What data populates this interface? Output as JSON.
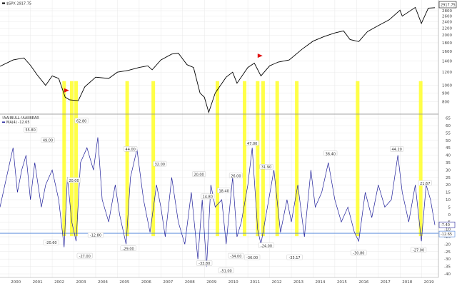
{
  "chart_data": {
    "type": "line",
    "colors": {
      "price": "#000000",
      "oscillator": "#1f1f9a",
      "highlight": "#ffff33",
      "threshold": "#4a7fd8",
      "signal_flag": "#e01010",
      "grid": "#e8e8e8",
      "divider": "#888888"
    },
    "x_ticks": [
      "2000",
      "2001",
      "2002",
      "2003",
      "2004",
      "2005",
      "2006",
      "2007",
      "2008",
      "2009",
      "2010",
      "2011",
      "2012",
      "2013",
      "2014",
      "2015",
      "2016",
      "2017",
      "2018",
      "2019"
    ],
    "x_range": [
      1999.6,
      2019.7
    ],
    "price_panel": {
      "legend": "$SPX 2917.75",
      "last_value_label": "2917.75",
      "scale": "log",
      "ylim": [
        700,
        3000
      ],
      "y_ticks": [
        "2900",
        "2800",
        "2600",
        "2400",
        "2200",
        "2000",
        "1800",
        "1600",
        "1400",
        "1200",
        "1000",
        "900",
        "800"
      ],
      "y_tick_values": [
        2900,
        2800,
        2600,
        2400,
        2200,
        2000,
        1800,
        1600,
        1400,
        1200,
        1000,
        900,
        800
      ],
      "series": [
        {
          "x": 1999.6,
          "y": 1300
        },
        {
          "x": 2000.2,
          "y": 1420
        },
        {
          "x": 2000.7,
          "y": 1460
        },
        {
          "x": 2001.0,
          "y": 1320
        },
        {
          "x": 2001.3,
          "y": 1160
        },
        {
          "x": 2001.7,
          "y": 1000
        },
        {
          "x": 2002.0,
          "y": 1140
        },
        {
          "x": 2002.3,
          "y": 1100
        },
        {
          "x": 2002.6,
          "y": 850
        },
        {
          "x": 2002.8,
          "y": 820
        },
        {
          "x": 2003.2,
          "y": 810
        },
        {
          "x": 2003.5,
          "y": 980
        },
        {
          "x": 2004.0,
          "y": 1120
        },
        {
          "x": 2004.6,
          "y": 1100
        },
        {
          "x": 2005.0,
          "y": 1200
        },
        {
          "x": 2005.5,
          "y": 1230
        },
        {
          "x": 2006.0,
          "y": 1280
        },
        {
          "x": 2006.4,
          "y": 1310
        },
        {
          "x": 2006.6,
          "y": 1240
        },
        {
          "x": 2007.0,
          "y": 1420
        },
        {
          "x": 2007.5,
          "y": 1540
        },
        {
          "x": 2007.8,
          "y": 1560
        },
        {
          "x": 2008.2,
          "y": 1330
        },
        {
          "x": 2008.5,
          "y": 1280
        },
        {
          "x": 2008.8,
          "y": 900
        },
        {
          "x": 2009.0,
          "y": 850
        },
        {
          "x": 2009.2,
          "y": 690
        },
        {
          "x": 2009.5,
          "y": 900
        },
        {
          "x": 2010.0,
          "y": 1120
        },
        {
          "x": 2010.3,
          "y": 1200
        },
        {
          "x": 2010.5,
          "y": 1030
        },
        {
          "x": 2011.0,
          "y": 1280
        },
        {
          "x": 2011.3,
          "y": 1360
        },
        {
          "x": 2011.6,
          "y": 1140
        },
        {
          "x": 2012.0,
          "y": 1310
        },
        {
          "x": 2012.4,
          "y": 1380
        },
        {
          "x": 2012.9,
          "y": 1420
        },
        {
          "x": 2013.5,
          "y": 1650
        },
        {
          "x": 2014.0,
          "y": 1840
        },
        {
          "x": 2014.5,
          "y": 1960
        },
        {
          "x": 2015.0,
          "y": 2060
        },
        {
          "x": 2015.4,
          "y": 2120
        },
        {
          "x": 2015.7,
          "y": 1880
        },
        {
          "x": 2016.1,
          "y": 1830
        },
        {
          "x": 2016.5,
          "y": 2100
        },
        {
          "x": 2017.0,
          "y": 2280
        },
        {
          "x": 2017.5,
          "y": 2470
        },
        {
          "x": 2018.0,
          "y": 2820
        },
        {
          "x": 2018.1,
          "y": 2600
        },
        {
          "x": 2018.7,
          "y": 2930
        },
        {
          "x": 2018.98,
          "y": 2350
        },
        {
          "x": 2019.3,
          "y": 2900
        },
        {
          "x": 2019.6,
          "y": 2918
        }
      ],
      "flags": [
        {
          "x": 2002.55,
          "y": 880
        },
        {
          "x": 2011.45,
          "y": 1420
        }
      ]
    },
    "oscillator_panel": {
      "legend": [
        "!AAIIBULL-!AAIIBEAR",
        "MA(4) -12.65"
      ],
      "last_value_label": "-7.40",
      "secondary_value_label": "-12.65",
      "ylim": [
        -40,
        60
      ],
      "threshold": -12.65,
      "y_ticks": [
        "65",
        "60",
        "55",
        "50",
        "45",
        "40",
        "35",
        "30",
        "25",
        "20",
        "15",
        "10",
        "5",
        "0",
        "-5",
        "-10",
        "-15",
        "-20",
        "-25",
        "-30",
        "-35",
        "-40"
      ],
      "y_tick_values": [
        65,
        60,
        55,
        50,
        45,
        40,
        35,
        30,
        25,
        20,
        15,
        10,
        5,
        0,
        -5,
        -10,
        -15,
        -20,
        -25,
        -30,
        -35,
        -40
      ],
      "series": [
        {
          "x": 1999.6,
          "y": 5
        },
        {
          "x": 1999.9,
          "y": 25
        },
        {
          "x": 2000.2,
          "y": 45
        },
        {
          "x": 2000.4,
          "y": 15
        },
        {
          "x": 2000.6,
          "y": 30
        },
        {
          "x": 2000.8,
          "y": 40
        },
        {
          "x": 2001.0,
          "y": 10
        },
        {
          "x": 2001.2,
          "y": 35
        },
        {
          "x": 2001.5,
          "y": 5
        },
        {
          "x": 2001.7,
          "y": 20
        },
        {
          "x": 2002.0,
          "y": 30
        },
        {
          "x": 2002.3,
          "y": 10
        },
        {
          "x": 2002.55,
          "y": -22
        },
        {
          "x": 2002.7,
          "y": 25
        },
        {
          "x": 2002.9,
          "y": -5
        },
        {
          "x": 2003.1,
          "y": -18
        },
        {
          "x": 2003.3,
          "y": 35
        },
        {
          "x": 2003.6,
          "y": 45
        },
        {
          "x": 2003.9,
          "y": 30
        },
        {
          "x": 2004.1,
          "y": 52
        },
        {
          "x": 2004.3,
          "y": 10
        },
        {
          "x": 2004.6,
          "y": -5
        },
        {
          "x": 2004.9,
          "y": 20
        },
        {
          "x": 2005.1,
          "y": 0
        },
        {
          "x": 2005.4,
          "y": -20
        },
        {
          "x": 2005.6,
          "y": 25
        },
        {
          "x": 2005.9,
          "y": 44
        },
        {
          "x": 2006.2,
          "y": 10
        },
        {
          "x": 2006.5,
          "y": -12
        },
        {
          "x": 2006.8,
          "y": 20
        },
        {
          "x": 2007.0,
          "y": 5
        },
        {
          "x": 2007.2,
          "y": -15
        },
        {
          "x": 2007.5,
          "y": 25
        },
        {
          "x": 2007.8,
          "y": -5
        },
        {
          "x": 2008.1,
          "y": -20
        },
        {
          "x": 2008.4,
          "y": 15
        },
        {
          "x": 2008.7,
          "y": -30
        },
        {
          "x": 2008.9,
          "y": 10
        },
        {
          "x": 2009.1,
          "y": -35
        },
        {
          "x": 2009.3,
          "y": 20
        },
        {
          "x": 2009.5,
          "y": 5
        },
        {
          "x": 2009.8,
          "y": 10
        },
        {
          "x": 2010.0,
          "y": -20
        },
        {
          "x": 2010.3,
          "y": 25
        },
        {
          "x": 2010.5,
          "y": -15
        },
        {
          "x": 2010.7,
          "y": -5
        },
        {
          "x": 2011.0,
          "y": 20
        },
        {
          "x": 2011.2,
          "y": 45
        },
        {
          "x": 2011.45,
          "y": -10
        },
        {
          "x": 2011.6,
          "y": -20
        },
        {
          "x": 2011.9,
          "y": 5
        },
        {
          "x": 2012.2,
          "y": 30
        },
        {
          "x": 2012.5,
          "y": -12
        },
        {
          "x": 2012.8,
          "y": 10
        },
        {
          "x": 2013.0,
          "y": -5
        },
        {
          "x": 2013.3,
          "y": 20
        },
        {
          "x": 2013.6,
          "y": -15
        },
        {
          "x": 2013.9,
          "y": 30
        },
        {
          "x": 2014.1,
          "y": 5
        },
        {
          "x": 2014.4,
          "y": 15
        },
        {
          "x": 2014.7,
          "y": 35
        },
        {
          "x": 2015.0,
          "y": 10
        },
        {
          "x": 2015.3,
          "y": -5
        },
        {
          "x": 2015.6,
          "y": 5
        },
        {
          "x": 2015.9,
          "y": -12
        },
        {
          "x": 2016.1,
          "y": -18
        },
        {
          "x": 2016.4,
          "y": 15
        },
        {
          "x": 2016.7,
          "y": -2
        },
        {
          "x": 2017.0,
          "y": 20
        },
        {
          "x": 2017.3,
          "y": 5
        },
        {
          "x": 2017.6,
          "y": 10
        },
        {
          "x": 2017.9,
          "y": 40
        },
        {
          "x": 2018.1,
          "y": 15
        },
        {
          "x": 2018.4,
          "y": -5
        },
        {
          "x": 2018.7,
          "y": 20
        },
        {
          "x": 2018.98,
          "y": -18
        },
        {
          "x": 2019.2,
          "y": 20
        },
        {
          "x": 2019.4,
          "y": 10
        },
        {
          "x": 2019.6,
          "y": -7
        }
      ]
    },
    "highlights": [
      2002.55,
      2002.9,
      2003.1,
      2005.45,
      2006.65,
      2009.6,
      2010.85,
      2011.45,
      2011.7,
      2012.35,
      2013.25,
      2016.05,
      2018.95
    ],
    "annotations": [
      {
        "text": "55.80",
        "x": 2001.0,
        "y": 57
      },
      {
        "text": "49.00",
        "x": 2001.8,
        "y": 50
      },
      {
        "text": "20.00",
        "x": 2003.0,
        "y": 23
      },
      {
        "text": "62.80",
        "x": 2003.35,
        "y": 63
      },
      {
        "text": "44.00",
        "x": 2005.6,
        "y": 44
      },
      {
        "text": "32.00",
        "x": 2006.95,
        "y": 34
      },
      {
        "text": "20.00",
        "x": 2008.75,
        "y": 27
      },
      {
        "text": "14.80",
        "x": 2009.15,
        "y": 12
      },
      {
        "text": "18.40",
        "x": 2009.9,
        "y": 16
      },
      {
        "text": "26.00",
        "x": 2010.45,
        "y": 26
      },
      {
        "text": "47.00",
        "x": 2011.2,
        "y": 48
      },
      {
        "text": "31.90",
        "x": 2011.85,
        "y": 32
      },
      {
        "text": "36.40",
        "x": 2014.8,
        "y": 41
      },
      {
        "text": "44.20",
        "x": 2017.85,
        "y": 44
      },
      {
        "text": "21.67",
        "x": 2019.15,
        "y": 21
      },
      {
        "text": "-20.60",
        "x": 2001.95,
        "y": -19
      },
      {
        "text": "-12.80",
        "x": 2004.0,
        "y": -14
      },
      {
        "text": "-27.00",
        "x": 2003.5,
        "y": -28
      },
      {
        "text": "-29.00",
        "x": 2005.5,
        "y": -23
      },
      {
        "text": "-33.80",
        "x": 2009.0,
        "y": -33
      },
      {
        "text": "-51.00",
        "x": 2010.0,
        "y": -38
      },
      {
        "text": "-34.00",
        "x": 2010.45,
        "y": -28
      },
      {
        "text": "-36.00",
        "x": 2011.2,
        "y": -29
      },
      {
        "text": "-24.00",
        "x": 2011.85,
        "y": -21
      },
      {
        "text": "-35.17",
        "x": 2013.15,
        "y": -29
      },
      {
        "text": "-30.80",
        "x": 2016.1,
        "y": -26
      },
      {
        "text": "-27.00",
        "x": 2018.85,
        "y": -24
      }
    ]
  }
}
